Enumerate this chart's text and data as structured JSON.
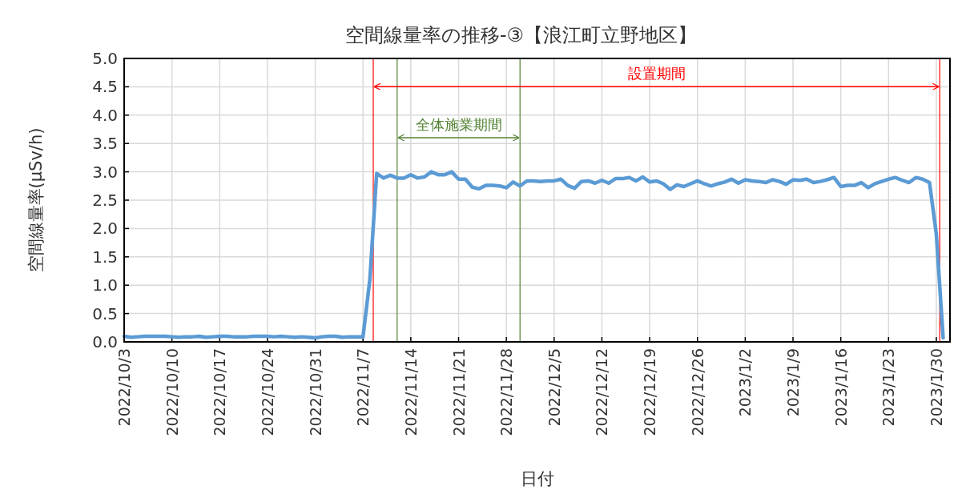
{
  "chart_data": {
    "type": "line",
    "title": "空間線量率の推移-③【浪江町立野地区】",
    "xlabel": "日付",
    "ylabel": "空間線量率(μSv/h)",
    "xlim": [
      "2022-10-03",
      "2023-02-01"
    ],
    "xticks": [
      {
        "value": "2022-10-03",
        "label": "2022/10/3"
      },
      {
        "value": "2022-10-10",
        "label": "2022/10/10"
      },
      {
        "value": "2022-10-17",
        "label": "2022/10/17"
      },
      {
        "value": "2022-10-24",
        "label": "2022/10/24"
      },
      {
        "value": "2022-10-31",
        "label": "2022/10/31"
      },
      {
        "value": "2022-11-07",
        "label": "2022/11/7"
      },
      {
        "value": "2022-11-14",
        "label": "2022/11/14"
      },
      {
        "value": "2022-11-21",
        "label": "2022/11/21"
      },
      {
        "value": "2022-11-28",
        "label": "2022/11/28"
      },
      {
        "value": "2022-12-05",
        "label": "2022/12/5"
      },
      {
        "value": "2022-12-12",
        "label": "2022/12/12"
      },
      {
        "value": "2022-12-19",
        "label": "2022/12/19"
      },
      {
        "value": "2022-12-26",
        "label": "2022/12/26"
      },
      {
        "value": "2023-01-02",
        "label": "2023/1/2"
      },
      {
        "value": "2023-01-09",
        "label": "2023/1/9"
      },
      {
        "value": "2023-01-16",
        "label": "2023/1/16"
      },
      {
        "value": "2023-01-23",
        "label": "2023/1/23"
      },
      {
        "value": "2023-01-30",
        "label": "2023/1/30"
      }
    ],
    "ylim": [
      0,
      5
    ],
    "yticks": [
      {
        "value": 0,
        "label": "0.0"
      },
      {
        "value": 0.5,
        "label": "0.5"
      },
      {
        "value": 1,
        "label": "1.0"
      },
      {
        "value": 1.5,
        "label": "1.5"
      },
      {
        "value": 2,
        "label": "2.0"
      },
      {
        "value": 2.5,
        "label": "2.5"
      },
      {
        "value": 3,
        "label": "3.0"
      },
      {
        "value": 3.5,
        "label": "3.5"
      },
      {
        "value": 4,
        "label": "4.0"
      },
      {
        "value": 4.5,
        "label": "4.5"
      },
      {
        "value": 5,
        "label": "5.0"
      }
    ],
    "grid": true,
    "marker": "none",
    "line_style": "solid",
    "x": [
      "2022-10-03",
      "2022-10-04",
      "2022-10-05",
      "2022-10-06",
      "2022-10-07",
      "2022-10-08",
      "2022-10-09",
      "2022-10-10",
      "2022-10-11",
      "2022-10-12",
      "2022-10-13",
      "2022-10-14",
      "2022-10-15",
      "2022-10-16",
      "2022-10-17",
      "2022-10-18",
      "2022-10-19",
      "2022-10-20",
      "2022-10-21",
      "2022-10-22",
      "2022-10-23",
      "2022-10-24",
      "2022-10-25",
      "2022-10-26",
      "2022-10-27",
      "2022-10-28",
      "2022-10-29",
      "2022-10-30",
      "2022-10-31",
      "2022-11-01",
      "2022-11-02",
      "2022-11-03",
      "2022-11-04",
      "2022-11-05",
      "2022-11-06",
      "2022-11-07",
      "2022-11-08",
      "2022-11-09",
      "2022-11-10",
      "2022-11-11",
      "2022-11-12",
      "2022-11-13",
      "2022-11-14",
      "2022-11-15",
      "2022-11-16",
      "2022-11-17",
      "2022-11-18",
      "2022-11-19",
      "2022-11-20",
      "2022-11-21",
      "2022-11-22",
      "2022-11-23",
      "2022-11-24",
      "2022-11-25",
      "2022-11-26",
      "2022-11-27",
      "2022-11-28",
      "2022-11-29",
      "2022-11-30",
      "2022-12-01",
      "2022-12-02",
      "2022-12-03",
      "2022-12-04",
      "2022-12-05",
      "2022-12-06",
      "2022-12-07",
      "2022-12-08",
      "2022-12-09",
      "2022-12-10",
      "2022-12-11",
      "2022-12-12",
      "2022-12-13",
      "2022-12-14",
      "2022-12-15",
      "2022-12-16",
      "2022-12-17",
      "2022-12-18",
      "2022-12-19",
      "2022-12-20",
      "2022-12-21",
      "2022-12-22",
      "2022-12-23",
      "2022-12-24",
      "2022-12-25",
      "2022-12-26",
      "2022-12-27",
      "2022-12-28",
      "2022-12-29",
      "2022-12-30",
      "2022-12-31",
      "2023-01-01",
      "2023-01-02",
      "2023-01-03",
      "2023-01-04",
      "2023-01-05",
      "2023-01-06",
      "2023-01-07",
      "2023-01-08",
      "2023-01-09",
      "2023-01-10",
      "2023-01-11",
      "2023-01-12",
      "2023-01-13",
      "2023-01-14",
      "2023-01-15",
      "2023-01-16",
      "2023-01-17",
      "2023-01-18",
      "2023-01-19",
      "2023-01-20",
      "2023-01-21",
      "2023-01-22",
      "2023-01-23",
      "2023-01-24",
      "2023-01-25",
      "2023-01-26",
      "2023-01-27",
      "2023-01-28",
      "2023-01-29",
      "2023-01-30",
      "2023-01-31"
    ],
    "series": [
      {
        "color": "#5b9bd5",
        "values": [
          0.1,
          0.08,
          0.09,
          0.1,
          0.1,
          0.1,
          0.1,
          0.09,
          0.08,
          0.09,
          0.09,
          0.1,
          0.08,
          0.09,
          0.1,
          0.1,
          0.09,
          0.09,
          0.09,
          0.1,
          0.1,
          0.1,
          0.09,
          0.1,
          0.09,
          0.08,
          0.09,
          0.08,
          0.07,
          0.09,
          0.1,
          0.1,
          0.08,
          0.09,
          0.09,
          0.09,
          1.1,
          2.97,
          2.89,
          2.94,
          2.89,
          2.89,
          2.95,
          2.89,
          2.91,
          3.0,
          2.95,
          2.95,
          3.0,
          2.87,
          2.87,
          2.73,
          2.7,
          2.76,
          2.76,
          2.75,
          2.72,
          2.82,
          2.75,
          2.84,
          2.84,
          2.83,
          2.84,
          2.84,
          2.87,
          2.76,
          2.71,
          2.83,
          2.84,
          2.8,
          2.85,
          2.8,
          2.88,
          2.88,
          2.9,
          2.84,
          2.91,
          2.82,
          2.84,
          2.79,
          2.69,
          2.77,
          2.74,
          2.79,
          2.84,
          2.79,
          2.75,
          2.79,
          2.82,
          2.87,
          2.8,
          2.86,
          2.84,
          2.83,
          2.81,
          2.86,
          2.83,
          2.78,
          2.86,
          2.85,
          2.87,
          2.81,
          2.83,
          2.86,
          2.9,
          2.74,
          2.76,
          2.76,
          2.81,
          2.72,
          2.79,
          2.83,
          2.87,
          2.9,
          2.85,
          2.81,
          2.9,
          2.87,
          2.81,
          1.9,
          0.07
        ]
      }
    ],
    "ref_lines": [
      {
        "axis": "x",
        "value": "2022-11-08T12:00",
        "color": "#ff0000"
      },
      {
        "axis": "x",
        "value": "2023-01-30T12:00",
        "color": "#ff0000"
      },
      {
        "axis": "x",
        "value": "2022-11-12",
        "color": "#548235"
      },
      {
        "axis": "x",
        "value": "2022-11-30",
        "color": "#548235"
      }
    ],
    "annotations": [
      "設置期間",
      "全体施業期間"
    ]
  }
}
